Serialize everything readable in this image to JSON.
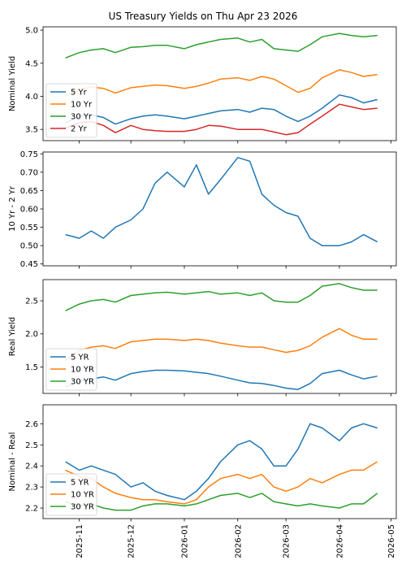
{
  "figure": {
    "title": "US Treasury Yields on Thu Apr 23 2026"
  },
  "x_axis": {
    "type": "date",
    "xlim": [
      "2025-10-11",
      "2026-05-04"
    ],
    "ticks": [
      {
        "date": "2025-11-01",
        "label": "2025-11"
      },
      {
        "date": "2025-12-01",
        "label": "2025-12"
      },
      {
        "date": "2026-01-01",
        "label": "2026-01"
      },
      {
        "date": "2026-02-01",
        "label": "2026-02"
      },
      {
        "date": "2026-03-01",
        "label": "2026-03"
      },
      {
        "date": "2026-04-01",
        "label": "2026-04"
      },
      {
        "date": "2026-05-01",
        "label": "2026-05"
      }
    ]
  },
  "chart_data": [
    {
      "type": "line",
      "ylabel": "Nominal Yield",
      "ylim": [
        3.33,
        5.05
      ],
      "yticks": [
        3.5,
        4.0,
        4.5,
        5.0
      ],
      "ytick_labels": [
        "3.5",
        "4.0",
        "4.5",
        "5.0"
      ],
      "grid": false,
      "legend_position": "lower-left",
      "x": [
        "2025-10-24",
        "2025-11-01",
        "2025-11-08",
        "2025-11-15",
        "2025-11-22",
        "2025-12-01",
        "2025-12-08",
        "2025-12-15",
        "2025-12-22",
        "2026-01-01",
        "2026-01-08",
        "2026-01-15",
        "2026-01-22",
        "2026-02-01",
        "2026-02-08",
        "2026-02-15",
        "2026-02-22",
        "2026-03-01",
        "2026-03-08",
        "2026-03-15",
        "2026-03-22",
        "2026-04-01",
        "2026-04-08",
        "2026-04-15",
        "2026-04-23"
      ],
      "series": [
        {
          "name": "5 Yr",
          "color": "#1f77b4",
          "values": [
            3.6,
            3.7,
            3.72,
            3.68,
            3.58,
            3.66,
            3.7,
            3.72,
            3.7,
            3.66,
            3.7,
            3.74,
            3.78,
            3.8,
            3.76,
            3.82,
            3.8,
            3.7,
            3.62,
            3.7,
            3.82,
            4.02,
            3.98,
            3.9,
            3.95
          ]
        },
        {
          "name": "10 Yr",
          "color": "#ff7f0e",
          "values": [
            4.0,
            4.1,
            4.14,
            4.12,
            4.05,
            4.13,
            4.15,
            4.17,
            4.16,
            4.12,
            4.15,
            4.2,
            4.26,
            4.28,
            4.24,
            4.3,
            4.26,
            4.16,
            4.06,
            4.12,
            4.28,
            4.4,
            4.36,
            4.3,
            4.33
          ]
        },
        {
          "name": "30 Yr",
          "color": "#2ca02c",
          "values": [
            4.58,
            4.66,
            4.7,
            4.72,
            4.66,
            4.74,
            4.75,
            4.77,
            4.77,
            4.72,
            4.78,
            4.82,
            4.86,
            4.88,
            4.82,
            4.86,
            4.72,
            4.7,
            4.68,
            4.78,
            4.9,
            4.95,
            4.92,
            4.9,
            4.92
          ]
        },
        {
          "name": "2 Yr",
          "color": "#d62728",
          "values": [
            3.52,
            3.6,
            3.62,
            3.56,
            3.45,
            3.56,
            3.5,
            3.48,
            3.47,
            3.47,
            3.5,
            3.56,
            3.55,
            3.5,
            3.5,
            3.5,
            3.46,
            3.42,
            3.45,
            3.58,
            3.7,
            3.88,
            3.84,
            3.8,
            3.82
          ]
        }
      ]
    },
    {
      "type": "line",
      "ylabel": "10 Yr - 2 Yr",
      "ylim": [
        0.445,
        0.755
      ],
      "yticks": [
        0.45,
        0.5,
        0.55,
        0.6,
        0.65,
        0.7,
        0.75
      ],
      "ytick_labels": [
        "0.45",
        "0.50",
        "0.55",
        "0.60",
        "0.65",
        "0.70",
        "0.75"
      ],
      "grid": false,
      "x": [
        "2025-10-24",
        "2025-11-01",
        "2025-11-08",
        "2025-11-15",
        "2025-11-22",
        "2025-12-01",
        "2025-12-08",
        "2025-12-15",
        "2025-12-22",
        "2026-01-01",
        "2026-01-08",
        "2026-01-15",
        "2026-01-22",
        "2026-02-01",
        "2026-02-08",
        "2026-02-15",
        "2026-02-22",
        "2026-03-01",
        "2026-03-08",
        "2026-03-15",
        "2026-03-22",
        "2026-04-01",
        "2026-04-08",
        "2026-04-15",
        "2026-04-23"
      ],
      "series": [
        {
          "name": "",
          "color": "#1f77b4",
          "values": [
            0.53,
            0.52,
            0.54,
            0.52,
            0.55,
            0.57,
            0.6,
            0.67,
            0.7,
            0.66,
            0.72,
            0.64,
            0.68,
            0.74,
            0.73,
            0.64,
            0.61,
            0.59,
            0.58,
            0.52,
            0.5,
            0.5,
            0.51,
            0.53,
            0.51
          ]
        }
      ]
    },
    {
      "type": "line",
      "ylabel": "Real Yield",
      "ylim": [
        1.1,
        2.82
      ],
      "yticks": [
        1.5,
        2.0,
        2.5
      ],
      "ytick_labels": [
        "1.5",
        "2.0",
        "2.5"
      ],
      "grid": false,
      "legend_position": "lower-left",
      "x": [
        "2025-10-24",
        "2025-11-01",
        "2025-11-08",
        "2025-11-15",
        "2025-11-22",
        "2025-12-01",
        "2025-12-08",
        "2025-12-15",
        "2025-12-22",
        "2026-01-01",
        "2026-01-08",
        "2026-01-15",
        "2026-01-22",
        "2026-02-01",
        "2026-02-08",
        "2026-02-15",
        "2026-02-22",
        "2026-03-01",
        "2026-03-08",
        "2026-03-15",
        "2026-03-22",
        "2026-04-01",
        "2026-04-08",
        "2026-04-15",
        "2026-04-23"
      ],
      "series": [
        {
          "name": "5 YR",
          "color": "#1f77b4",
          "values": [
            1.2,
            1.28,
            1.32,
            1.35,
            1.3,
            1.4,
            1.43,
            1.45,
            1.45,
            1.44,
            1.42,
            1.4,
            1.36,
            1.3,
            1.26,
            1.25,
            1.22,
            1.18,
            1.16,
            1.25,
            1.4,
            1.45,
            1.38,
            1.32,
            1.36
          ]
        },
        {
          "name": "10 YR",
          "color": "#ff7f0e",
          "values": [
            1.6,
            1.75,
            1.8,
            1.82,
            1.78,
            1.88,
            1.9,
            1.92,
            1.92,
            1.9,
            1.92,
            1.9,
            1.86,
            1.82,
            1.8,
            1.8,
            1.76,
            1.72,
            1.75,
            1.82,
            1.95,
            2.08,
            1.98,
            1.92,
            1.92
          ]
        },
        {
          "name": "30 YR",
          "color": "#2ca02c",
          "values": [
            2.35,
            2.45,
            2.5,
            2.52,
            2.48,
            2.58,
            2.6,
            2.62,
            2.63,
            2.6,
            2.62,
            2.64,
            2.6,
            2.62,
            2.58,
            2.62,
            2.5,
            2.48,
            2.48,
            2.58,
            2.72,
            2.76,
            2.7,
            2.66,
            2.66
          ]
        }
      ]
    },
    {
      "type": "line",
      "ylabel": "Nominal - Real",
      "ylim": [
        2.15,
        2.69
      ],
      "yticks": [
        2.2,
        2.3,
        2.4,
        2.5,
        2.6
      ],
      "ytick_labels": [
        "2.2",
        "2.3",
        "2.4",
        "2.5",
        "2.6"
      ],
      "grid": false,
      "legend_position": "lower-left",
      "x": [
        "2025-10-24",
        "2025-11-01",
        "2025-11-08",
        "2025-11-15",
        "2025-11-22",
        "2025-12-01",
        "2025-12-08",
        "2025-12-15",
        "2025-12-22",
        "2026-01-01",
        "2026-01-08",
        "2026-01-15",
        "2026-01-22",
        "2026-02-01",
        "2026-02-08",
        "2026-02-15",
        "2026-02-22",
        "2026-03-01",
        "2026-03-08",
        "2026-03-15",
        "2026-03-22",
        "2026-04-01",
        "2026-04-08",
        "2026-04-15",
        "2026-04-23"
      ],
      "series": [
        {
          "name": "5 YR",
          "color": "#1f77b4",
          "values": [
            2.42,
            2.38,
            2.4,
            2.38,
            2.36,
            2.3,
            2.32,
            2.28,
            2.26,
            2.24,
            2.28,
            2.34,
            2.42,
            2.5,
            2.52,
            2.48,
            2.4,
            2.4,
            2.48,
            2.6,
            2.58,
            2.52,
            2.58,
            2.6,
            2.58
          ]
        },
        {
          "name": "10 YR",
          "color": "#ff7f0e",
          "values": [
            2.38,
            2.35,
            2.34,
            2.3,
            2.27,
            2.25,
            2.24,
            2.24,
            2.23,
            2.22,
            2.24,
            2.3,
            2.34,
            2.36,
            2.34,
            2.36,
            2.3,
            2.28,
            2.3,
            2.34,
            2.32,
            2.36,
            2.38,
            2.38,
            2.42
          ]
        },
        {
          "name": "30 YR",
          "color": "#2ca02c",
          "values": [
            2.23,
            2.21,
            2.22,
            2.2,
            2.19,
            2.19,
            2.21,
            2.22,
            2.22,
            2.21,
            2.22,
            2.24,
            2.26,
            2.27,
            2.25,
            2.27,
            2.23,
            2.22,
            2.21,
            2.22,
            2.21,
            2.2,
            2.22,
            2.22,
            2.27
          ]
        }
      ]
    }
  ]
}
